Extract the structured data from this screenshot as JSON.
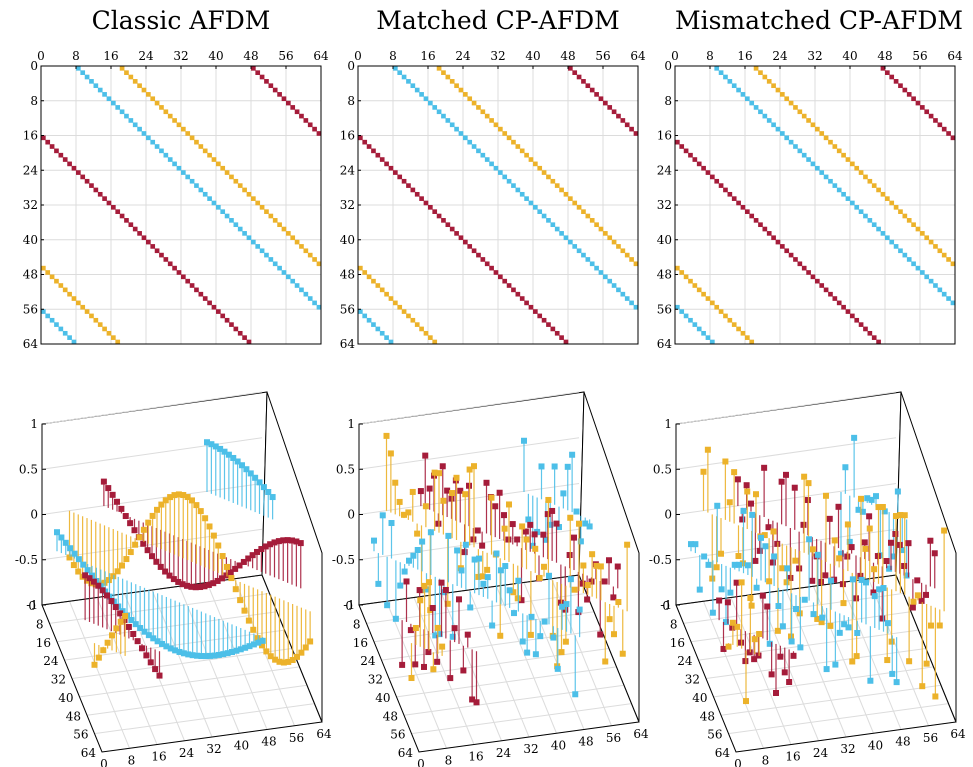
{
  "colors": {
    "red": "#a51c3a",
    "blue": "#4cbfe8",
    "yellow": "#ecb22a",
    "grid": "#dcdcdc",
    "axis": "#000000"
  },
  "chart_data": [
    {
      "type": "heatmap",
      "title": "Classic AFDM",
      "size": 64,
      "xlim": [
        0,
        64
      ],
      "ylim": [
        0,
        64
      ],
      "x_ticks": [
        "0",
        "8",
        "16",
        "24",
        "32",
        "40",
        "48",
        "56",
        "64"
      ],
      "y_ticks": [
        "0",
        "8",
        "16",
        "24",
        "32",
        "40",
        "48",
        "56",
        "64"
      ],
      "bands": [
        {
          "color": "red",
          "offset": 16
        },
        {
          "color": "blue",
          "offset": -8
        },
        {
          "color": "yellow",
          "offset": -18
        }
      ]
    },
    {
      "type": "heatmap",
      "title": "Matched CP-AFDM",
      "size": 64,
      "xlim": [
        0,
        64
      ],
      "ylim": [
        0,
        64
      ],
      "x_ticks": [
        "0",
        "8",
        "16",
        "24",
        "32",
        "40",
        "48",
        "56",
        "64"
      ],
      "y_ticks": [
        "0",
        "8",
        "16",
        "24",
        "32",
        "40",
        "48",
        "56",
        "64"
      ],
      "bands": [
        {
          "color": "red",
          "offset": 16
        },
        {
          "color": "blue",
          "offset": -8
        },
        {
          "color": "yellow",
          "offset": -18
        }
      ]
    },
    {
      "type": "heatmap",
      "title": "Mismatched CP-AFDM",
      "size": 64,
      "xlim": [
        0,
        64
      ],
      "ylim": [
        0,
        64
      ],
      "x_ticks": [
        "0",
        "8",
        "16",
        "24",
        "32",
        "40",
        "48",
        "56",
        "64"
      ],
      "y_ticks": [
        "0",
        "8",
        "16",
        "24",
        "32",
        "40",
        "48",
        "56",
        "64"
      ],
      "bands": [
        {
          "color": "red",
          "offset": 17
        },
        {
          "color": "blue",
          "offset": -9
        },
        {
          "color": "yellow",
          "offset": -18
        }
      ]
    },
    {
      "type": "scatter",
      "panel": "3d-stem",
      "variant": "smooth",
      "zlim": [
        -1,
        1
      ],
      "z_ticks": [
        "1",
        "0.5",
        "0",
        "-0.5",
        "-1"
      ],
      "row_ticks": [
        "0",
        "8",
        "16",
        "24",
        "32",
        "40",
        "48",
        "56",
        "64"
      ],
      "col_ticks": [
        "0",
        "8",
        "16",
        "24",
        "32",
        "40",
        "48",
        "56",
        "64"
      ],
      "series": [
        {
          "name": "",
          "color": "blue",
          "amplitude": 0.55,
          "cycles": 0.75,
          "phase": 0.0
        },
        {
          "name": "",
          "color": "yellow",
          "amplitude": 0.7,
          "cycles": 1.5,
          "phase": 2.4
        },
        {
          "name": "",
          "color": "red",
          "amplitude": 0.5,
          "cycles": 1.2,
          "phase": 1.0
        }
      ]
    },
    {
      "type": "scatter",
      "panel": "3d-stem",
      "variant": "random",
      "zlim": [
        -1,
        1
      ],
      "z_ticks": [
        "1",
        "0.5",
        "0",
        "-0.5",
        "-1"
      ],
      "row_ticks": [
        "0",
        "8",
        "16",
        "24",
        "32",
        "40",
        "48",
        "56",
        "64"
      ],
      "col_ticks": [
        "0",
        "8",
        "16",
        "24",
        "32",
        "40",
        "48",
        "56",
        "64"
      ],
      "series": [
        {
          "name": "",
          "color": "blue",
          "amplitude": 0.7,
          "seed": 11
        },
        {
          "name": "",
          "color": "yellow",
          "amplitude": 0.95,
          "seed": 23
        },
        {
          "name": "",
          "color": "red",
          "amplitude": 0.6,
          "seed": 37
        }
      ]
    },
    {
      "type": "scatter",
      "panel": "3d-stem",
      "variant": "random",
      "zlim": [
        -1,
        1
      ],
      "z_ticks": [
        "1",
        "0.5",
        "0",
        "-0.5",
        "-1"
      ],
      "row_ticks": [
        "0",
        "8",
        "16",
        "24",
        "32",
        "40",
        "48",
        "56",
        "64"
      ],
      "col_ticks": [
        "0",
        "8",
        "16",
        "24",
        "32",
        "40",
        "48",
        "56",
        "64"
      ],
      "series": [
        {
          "name": "",
          "color": "blue",
          "amplitude": 0.7,
          "seed": 53
        },
        {
          "name": "",
          "color": "yellow",
          "amplitude": 1.0,
          "seed": 67
        },
        {
          "name": "",
          "color": "red",
          "amplitude": 0.6,
          "seed": 79
        }
      ]
    }
  ]
}
